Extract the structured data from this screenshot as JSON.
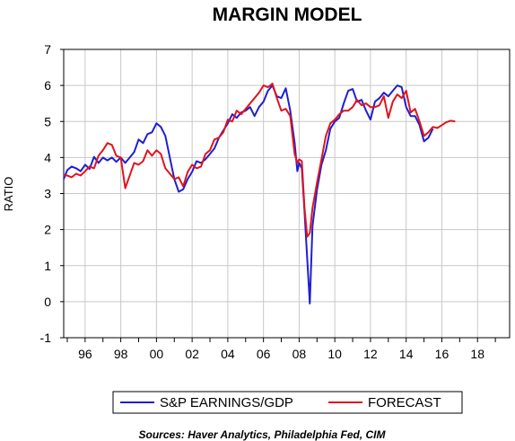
{
  "chart_data": {
    "type": "line",
    "title": "MARGIN MODEL",
    "ylabel": "RATIO",
    "xlabel": "",
    "ylim": [
      -1,
      7
    ],
    "xlim": [
      1994.8,
      2019.8
    ],
    "yticks": [
      -1,
      0,
      1,
      2,
      3,
      4,
      5,
      6,
      7
    ],
    "xticks": [
      {
        "label": "96",
        "value": 1996
      },
      {
        "label": "98",
        "value": 1998
      },
      {
        "label": "00",
        "value": 2000
      },
      {
        "label": "02",
        "value": 2002
      },
      {
        "label": "04",
        "value": 2004
      },
      {
        "label": "06",
        "value": 2006
      },
      {
        "label": "08",
        "value": 2008
      },
      {
        "label": "10",
        "value": 2010
      },
      {
        "label": "12",
        "value": 2012
      },
      {
        "label": "14",
        "value": 2014
      },
      {
        "label": "16",
        "value": 2016
      },
      {
        "label": "18",
        "value": 2018
      }
    ],
    "grid": true,
    "legend_position": "bottom",
    "series": [
      {
        "name": "S&P EARNINGS/GDP",
        "color": "#1f1fd1",
        "points": [
          [
            1994.8,
            3.4
          ],
          [
            1995.0,
            3.65
          ],
          [
            1995.25,
            3.75
          ],
          [
            1995.5,
            3.7
          ],
          [
            1995.75,
            3.62
          ],
          [
            1996.0,
            3.8
          ],
          [
            1996.25,
            3.68
          ],
          [
            1996.5,
            4.02
          ],
          [
            1996.75,
            3.85
          ],
          [
            1997.0,
            4.0
          ],
          [
            1997.25,
            3.92
          ],
          [
            1997.5,
            4.0
          ],
          [
            1997.75,
            3.88
          ],
          [
            1998.0,
            4.0
          ],
          [
            1998.25,
            3.85
          ],
          [
            1998.5,
            4.0
          ],
          [
            1998.75,
            4.15
          ],
          [
            1999.0,
            4.5
          ],
          [
            1999.25,
            4.4
          ],
          [
            1999.5,
            4.65
          ],
          [
            1999.75,
            4.7
          ],
          [
            2000.0,
            4.95
          ],
          [
            2000.25,
            4.85
          ],
          [
            2000.5,
            4.6
          ],
          [
            2000.75,
            4.0
          ],
          [
            2001.0,
            3.4
          ],
          [
            2001.25,
            3.05
          ],
          [
            2001.5,
            3.12
          ],
          [
            2001.75,
            3.4
          ],
          [
            2002.0,
            3.6
          ],
          [
            2002.25,
            3.9
          ],
          [
            2002.5,
            3.85
          ],
          [
            2002.75,
            3.95
          ],
          [
            2003.0,
            4.1
          ],
          [
            2003.25,
            4.25
          ],
          [
            2003.5,
            4.55
          ],
          [
            2003.75,
            4.75
          ],
          [
            2004.0,
            4.95
          ],
          [
            2004.25,
            5.2
          ],
          [
            2004.5,
            5.1
          ],
          [
            2004.75,
            5.25
          ],
          [
            2005.0,
            5.3
          ],
          [
            2005.25,
            5.4
          ],
          [
            2005.5,
            5.15
          ],
          [
            2005.75,
            5.4
          ],
          [
            2006.0,
            5.55
          ],
          [
            2006.25,
            5.85
          ],
          [
            2006.5,
            6.0
          ],
          [
            2006.75,
            5.7
          ],
          [
            2007.0,
            5.65
          ],
          [
            2007.25,
            5.92
          ],
          [
            2007.5,
            5.3
          ],
          [
            2007.75,
            4.4
          ],
          [
            2007.9,
            3.62
          ],
          [
            2008.0,
            3.85
          ],
          [
            2008.15,
            3.7
          ],
          [
            2008.3,
            2.5
          ],
          [
            2008.45,
            1.2
          ],
          [
            2008.6,
            -0.05
          ],
          [
            2008.75,
            2.1
          ],
          [
            2009.0,
            3.1
          ],
          [
            2009.25,
            3.8
          ],
          [
            2009.5,
            4.2
          ],
          [
            2009.75,
            4.8
          ],
          [
            2010.0,
            5.0
          ],
          [
            2010.25,
            5.1
          ],
          [
            2010.5,
            5.5
          ],
          [
            2010.75,
            5.85
          ],
          [
            2011.0,
            5.9
          ],
          [
            2011.25,
            5.55
          ],
          [
            2011.5,
            5.6
          ],
          [
            2011.75,
            5.3
          ],
          [
            2012.0,
            5.05
          ],
          [
            2012.25,
            5.55
          ],
          [
            2012.5,
            5.65
          ],
          [
            2012.75,
            5.8
          ],
          [
            2013.0,
            5.7
          ],
          [
            2013.25,
            5.85
          ],
          [
            2013.5,
            6.0
          ],
          [
            2013.75,
            5.95
          ],
          [
            2014.0,
            5.4
          ],
          [
            2014.25,
            5.15
          ],
          [
            2014.5,
            5.15
          ],
          [
            2014.75,
            4.9
          ],
          [
            2015.0,
            4.45
          ],
          [
            2015.25,
            4.55
          ],
          [
            2015.5,
            4.8
          ]
        ]
      },
      {
        "name": "FORECAST",
        "color": "#e0141e",
        "points": [
          [
            1994.8,
            3.5
          ],
          [
            1995.0,
            3.5
          ],
          [
            1995.25,
            3.45
          ],
          [
            1995.5,
            3.55
          ],
          [
            1995.75,
            3.5
          ],
          [
            1996.0,
            3.62
          ],
          [
            1996.25,
            3.75
          ],
          [
            1996.5,
            3.7
          ],
          [
            1996.75,
            4.05
          ],
          [
            1997.0,
            4.2
          ],
          [
            1997.25,
            4.4
          ],
          [
            1997.5,
            4.35
          ],
          [
            1997.75,
            4.05
          ],
          [
            1998.0,
            4.0
          ],
          [
            1998.25,
            3.15
          ],
          [
            1998.5,
            3.5
          ],
          [
            1998.75,
            3.85
          ],
          [
            1999.0,
            3.8
          ],
          [
            1999.25,
            3.9
          ],
          [
            1999.5,
            4.2
          ],
          [
            1999.75,
            4.05
          ],
          [
            2000.0,
            4.2
          ],
          [
            2000.25,
            4.1
          ],
          [
            2000.5,
            3.7
          ],
          [
            2000.75,
            3.55
          ],
          [
            2001.0,
            3.4
          ],
          [
            2001.25,
            3.45
          ],
          [
            2001.5,
            3.2
          ],
          [
            2001.75,
            3.6
          ],
          [
            2002.0,
            3.8
          ],
          [
            2002.25,
            3.7
          ],
          [
            2002.5,
            3.75
          ],
          [
            2002.75,
            4.1
          ],
          [
            2003.0,
            4.2
          ],
          [
            2003.25,
            4.5
          ],
          [
            2003.5,
            4.55
          ],
          [
            2003.75,
            4.7
          ],
          [
            2004.0,
            5.05
          ],
          [
            2004.25,
            5.0
          ],
          [
            2004.5,
            5.3
          ],
          [
            2004.75,
            5.2
          ],
          [
            2005.0,
            5.35
          ],
          [
            2005.25,
            5.5
          ],
          [
            2005.5,
            5.65
          ],
          [
            2005.75,
            5.8
          ],
          [
            2006.0,
            6.0
          ],
          [
            2006.25,
            5.95
          ],
          [
            2006.5,
            6.05
          ],
          [
            2006.75,
            5.65
          ],
          [
            2007.0,
            5.3
          ],
          [
            2007.25,
            5.35
          ],
          [
            2007.5,
            5.15
          ],
          [
            2007.75,
            4.1
          ],
          [
            2007.9,
            3.85
          ],
          [
            2008.0,
            3.95
          ],
          [
            2008.15,
            3.9
          ],
          [
            2008.3,
            2.6
          ],
          [
            2008.45,
            1.8
          ],
          [
            2008.6,
            1.9
          ],
          [
            2008.75,
            2.6
          ],
          [
            2009.0,
            3.3
          ],
          [
            2009.25,
            3.95
          ],
          [
            2009.5,
            4.6
          ],
          [
            2009.75,
            4.95
          ],
          [
            2010.0,
            5.05
          ],
          [
            2010.25,
            5.2
          ],
          [
            2010.5,
            5.3
          ],
          [
            2010.75,
            5.3
          ],
          [
            2011.0,
            5.4
          ],
          [
            2011.25,
            5.6
          ],
          [
            2011.5,
            5.45
          ],
          [
            2011.75,
            5.5
          ],
          [
            2012.0,
            5.4
          ],
          [
            2012.25,
            5.4
          ],
          [
            2012.5,
            5.45
          ],
          [
            2012.75,
            5.7
          ],
          [
            2013.0,
            5.1
          ],
          [
            2013.25,
            5.55
          ],
          [
            2013.5,
            5.75
          ],
          [
            2013.75,
            5.65
          ],
          [
            2014.0,
            5.85
          ],
          [
            2014.25,
            5.25
          ],
          [
            2014.5,
            5.35
          ],
          [
            2014.75,
            5.0
          ],
          [
            2015.0,
            4.6
          ],
          [
            2015.25,
            4.7
          ],
          [
            2015.5,
            4.85
          ],
          [
            2015.75,
            4.82
          ],
          [
            2016.0,
            4.9
          ],
          [
            2016.25,
            4.98
          ],
          [
            2016.5,
            5.02
          ],
          [
            2016.75,
            5.0
          ]
        ]
      }
    ],
    "source": "Sources:  Haver Analytics, Philadelphia Fed, CIM"
  }
}
